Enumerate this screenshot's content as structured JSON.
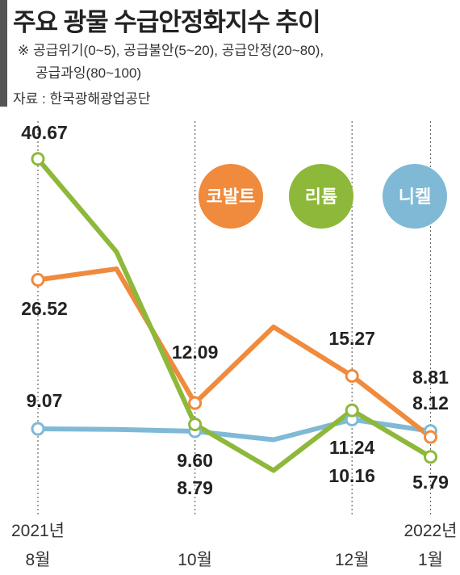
{
  "chart_data": {
    "type": "line",
    "title": "주요 광물 수급안정화지수 추이",
    "note": [
      "※ 공급위기(0~5), 공급불안(5~20), 공급안정(20~80),",
      "공급과잉(80~100)"
    ],
    "source": "자료 : 한국광해광업공단",
    "categories": [
      "2021년\n8월",
      null,
      "10월",
      null,
      "12월",
      "2022년\n1월"
    ],
    "ylim": [
      0,
      45
    ],
    "series": [
      {
        "name": "코발트",
        "color": "#f08a3c",
        "values": [
          26.52,
          27.8,
          12.09,
          21.0,
          15.27,
          8.12
        ],
        "value_labels": [
          null,
          null,
          null,
          null,
          null,
          null
        ]
      },
      {
        "name": "리튬",
        "color": "#8db83a",
        "values": [
          40.67,
          29.8,
          9.6,
          4.2,
          11.24,
          5.79
        ],
        "value_labels": [
          null,
          null,
          "9.60",
          null,
          null,
          null
        ]
      },
      {
        "name": "니켈",
        "color": "#7fb9d6",
        "values": [
          9.07,
          9.0,
          8.79,
          7.8,
          10.16,
          8.81
        ],
        "value_labels": [
          null,
          null,
          null,
          null,
          null,
          null
        ]
      }
    ]
  }
}
